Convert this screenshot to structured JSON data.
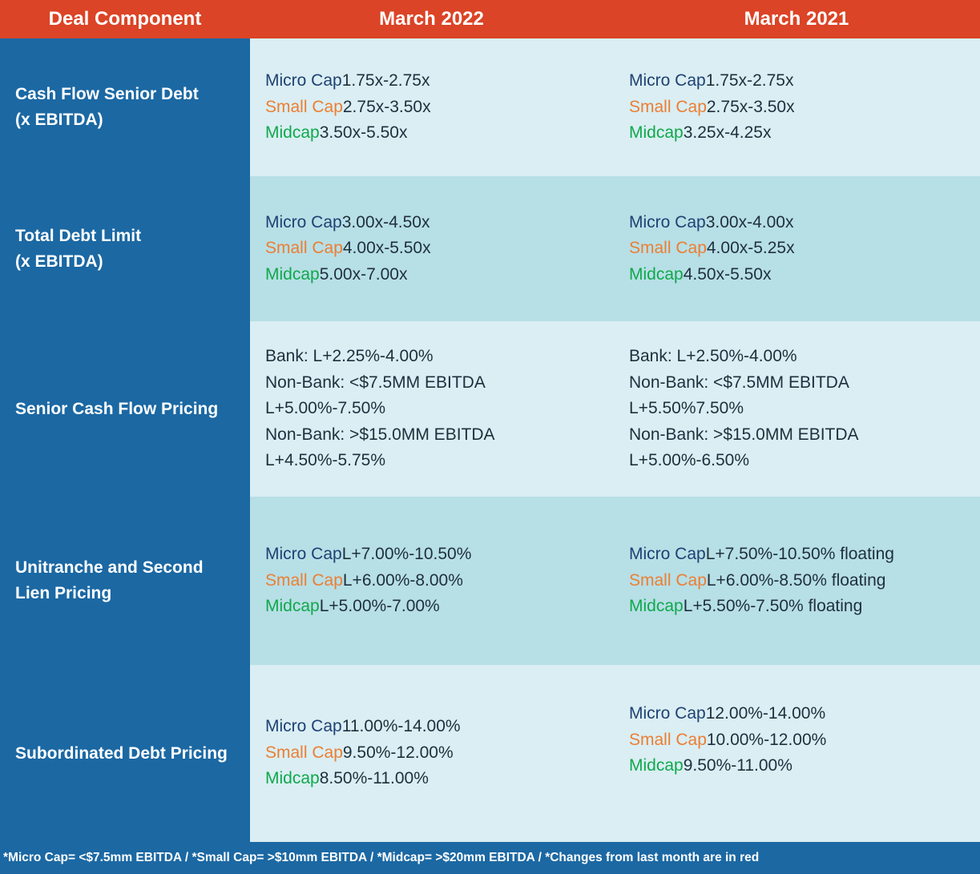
{
  "header": {
    "col0": "Deal Component",
    "col1": "March 2022",
    "col2": "March 2021"
  },
  "tiers": {
    "micro": "Micro Cap",
    "small": "Small Cap",
    "mid": "Midcap"
  },
  "rows": [
    {
      "label_line1": "Cash Flow Senior Debt",
      "label_line2": "(x EBITDA)",
      "march2022": {
        "micro": "1.75x-2.75x",
        "small": "2.75x-3.50x",
        "mid": "3.50x-5.50x"
      },
      "march2021": {
        "micro": "1.75x-2.75x",
        "small": "2.75x-3.50x",
        "mid": "3.25x-4.25x"
      }
    },
    {
      "label_line1": "Total Debt Limit",
      "label_line2": "(x EBITDA)",
      "march2022": {
        "micro": "3.00x-4.50x",
        "small": "4.00x-5.50x",
        "mid": "5.00x-7.00x"
      },
      "march2021": {
        "micro": "3.00x-4.00x",
        "small": "4.00x-5.25x",
        "mid": "4.50x-5.50x"
      }
    },
    {
      "label_line1": "Senior Cash Flow Pricing",
      "march2022": {
        "bank": "Bank: L+2.25%-4.00%",
        "nonbank1": "Non-Bank: <$7.5MM EBITDA L+5.00%-7.50%",
        "nonbank2": "Non-Bank: >$15.0MM EBITDA L+4.50%-5.75%"
      },
      "march2021": {
        "bank": "Bank: L+2.50%-4.00%",
        "nonbank1": "Non-Bank: <$7.5MM EBITDA L+5.50%7.50%",
        "nonbank2": "Non-Bank: >$15.0MM EBITDA L+5.00%-6.50%"
      }
    },
    {
      "label_line1": "Unitranche and Second",
      "label_line2": "Lien Pricing",
      "march2022": {
        "micro": "L+7.00%-10.50%",
        "small": "L+6.00%-8.00%",
        "mid": "L+5.00%-7.00%"
      },
      "march2021": {
        "micro": "L+7.50%-10.50% floating",
        "small": "L+6.00%-8.50% floating",
        "mid": "L+5.50%-7.50% floating"
      }
    },
    {
      "label_line1": "Subordinated Debt Pricing",
      "march2022": {
        "micro": "11.00%-14.00%",
        "small": "9.50%-12.00%",
        "mid": "8.50%-11.00%"
      },
      "march2021": {
        "micro": "12.00%-14.00%",
        "small": "10.00%-12.00%",
        "mid": "9.50%-11.00%"
      }
    }
  ],
  "footnote": "*Micro Cap= <$7.5mm EBITDA / *Small Cap= >$10mm EBITDA / *Midcap= >$20mm EBITDA / *Changes from last month are in red",
  "colors": {
    "header_bg": "#db4426",
    "sidebar_bg": "#1b68a3",
    "band_light": "#daeef3",
    "band_dark": "#b7dfe6",
    "micro_cap": "#1f4173",
    "small_cap": "#ec7e32",
    "midcap": "#10a84b"
  }
}
